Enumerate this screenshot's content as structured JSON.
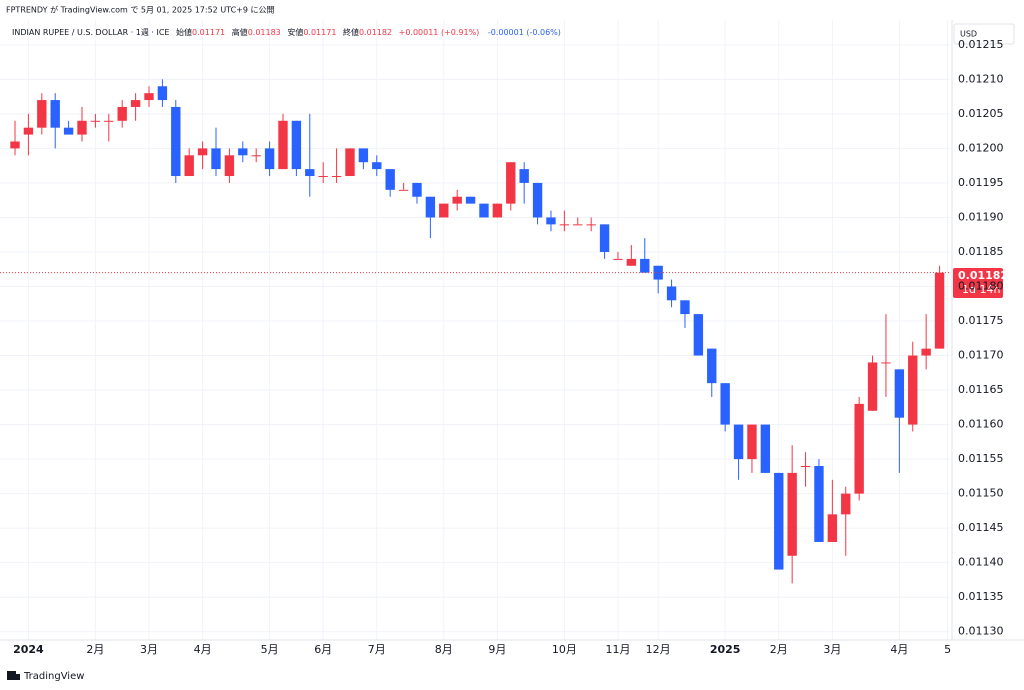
{
  "header": {
    "published": "FPTRENDY が TradingView.com で 5月 01, 2025 17:52 UTC+9 に公開"
  },
  "chart_data": {
    "type": "candlestick",
    "title": "INDIAN RUPEE / U.S. DOLLAR · 1週 · ICE",
    "legend": {
      "open_label": "始値",
      "open": "0.01171",
      "high_label": "高値",
      "high": "0.01183",
      "low_label": "安値",
      "low": "0.01171",
      "close_label": "終値",
      "close": "0.01182",
      "change": "+0.00011 (+0.91%)",
      "change2": "-0.00001 (-0.06%)"
    },
    "currency": "USD",
    "countdown": "1d 14h",
    "up_color": "#f23645",
    "down_color": "#2962ff",
    "grid": true,
    "open": [
      0.012,
      0.01202,
      0.01203,
      0.01207,
      0.01203,
      0.01202,
      0.01204,
      0.01204,
      0.01204,
      0.01206,
      0.01207,
      0.01209,
      0.01206,
      0.01196,
      0.01199,
      0.012,
      0.01196,
      0.012,
      0.01199,
      0.012,
      0.01197,
      0.01204,
      0.01197,
      0.01196,
      0.01196,
      0.01196,
      0.012,
      0.01198,
      0.01197,
      0.01194,
      0.01195,
      0.01193,
      0.0119,
      0.01192,
      0.01193,
      0.01192,
      0.0119,
      0.01192,
      0.01197,
      0.01195,
      0.0119,
      0.01189,
      0.01189,
      0.01189,
      0.01189,
      0.01184,
      0.01183,
      0.01184,
      0.01183,
      0.0118,
      0.01178,
      0.01176,
      0.01171,
      0.01166,
      0.0116,
      0.01155,
      0.0116,
      0.01153,
      0.01141,
      0.01154,
      0.01154,
      0.01143,
      0.01147,
      0.0115,
      0.01162,
      0.01169,
      0.01168,
      0.0116,
      0.0117,
      0.01171
    ],
    "high": [
      0.01204,
      0.01205,
      0.01208,
      0.01208,
      0.01204,
      0.01206,
      0.01205,
      0.01205,
      0.01207,
      0.01208,
      0.01209,
      0.0121,
      0.01207,
      0.012,
      0.01201,
      0.01203,
      0.012,
      0.01201,
      0.012,
      0.01201,
      0.01205,
      0.01204,
      0.01205,
      0.01198,
      0.012,
      0.012,
      0.012,
      0.01199,
      0.01197,
      0.01195,
      0.01195,
      0.01193,
      0.01192,
      0.01194,
      0.01193,
      0.01192,
      0.01192,
      0.01198,
      0.01198,
      0.01195,
      0.01191,
      0.01191,
      0.0119,
      0.0119,
      0.01189,
      0.01185,
      0.01186,
      0.01187,
      0.01183,
      0.01181,
      0.01178,
      0.01176,
      0.01171,
      0.01166,
      0.0116,
      0.0116,
      0.0116,
      0.01153,
      0.01157,
      0.01156,
      0.01155,
      0.01152,
      0.01151,
      0.01164,
      0.0117,
      0.01176,
      0.01168,
      0.01172,
      0.01176,
      0.01183
    ],
    "low": [
      0.01199,
      0.01199,
      0.01202,
      0.012,
      0.01202,
      0.01201,
      0.01203,
      0.01201,
      0.01203,
      0.01204,
      0.01206,
      0.01206,
      0.01195,
      0.01196,
      0.01197,
      0.01196,
      0.01195,
      0.01198,
      0.01198,
      0.01196,
      0.01197,
      0.01196,
      0.01193,
      0.01195,
      0.01195,
      0.01196,
      0.01197,
      0.01196,
      0.01193,
      0.01194,
      0.01192,
      0.01187,
      0.0119,
      0.01191,
      0.01192,
      0.0119,
      0.0119,
      0.01191,
      0.01192,
      0.01189,
      0.01188,
      0.01188,
      0.01189,
      0.01188,
      0.01184,
      0.01184,
      0.01183,
      0.01182,
      0.01179,
      0.01177,
      0.01174,
      0.0117,
      0.01164,
      0.01159,
      0.01152,
      0.01153,
      0.01153,
      0.01139,
      0.01137,
      0.01151,
      0.01143,
      0.01143,
      0.01141,
      0.01149,
      0.01162,
      0.01164,
      0.01153,
      0.01159,
      0.01168,
      0.01171
    ],
    "close": [
      0.01201,
      0.01203,
      0.01207,
      0.01203,
      0.01202,
      0.01204,
      0.01204,
      0.01204,
      0.01206,
      0.01207,
      0.01208,
      0.01207,
      0.01196,
      0.01199,
      0.012,
      0.01197,
      0.01199,
      0.01199,
      0.01199,
      0.01197,
      0.01204,
      0.01197,
      0.01196,
      0.01196,
      0.01196,
      0.012,
      0.01198,
      0.01197,
      0.01194,
      0.01194,
      0.01193,
      0.0119,
      0.01192,
      0.01193,
      0.01192,
      0.0119,
      0.01192,
      0.01198,
      0.01195,
      0.0119,
      0.01189,
      0.01189,
      0.01189,
      0.01189,
      0.01185,
      0.01184,
      0.01184,
      0.01182,
      0.01181,
      0.01178,
      0.01176,
      0.0117,
      0.01166,
      0.0116,
      0.01155,
      0.0116,
      0.01153,
      0.01139,
      0.01153,
      0.01154,
      0.01143,
      0.01147,
      0.0115,
      0.01163,
      0.01169,
      0.01169,
      0.01161,
      0.0117,
      0.01171,
      0.01182
    ],
    "ylim": [
      0.011288,
      0.012157
    ],
    "yticks": [
      {
        "value": 0.0113,
        "label": "0.01130"
      },
      0.01135,
      {
        "value": 0.0114,
        "label": "0.01140"
      },
      0.01145,
      {
        "value": 0.0115,
        "label": "0.01150"
      },
      0.01155,
      {
        "value": 0.0116,
        "label": "0.01160"
      },
      0.01165,
      {
        "value": 0.0117,
        "label": "0.01170"
      },
      0.01175,
      {
        "value": 0.0118,
        "label": "0.01180"
      },
      0.01185,
      {
        "value": 0.0119,
        "label": "0.01190"
      },
      0.01195,
      {
        "value": 0.012,
        "label": "0.01200"
      },
      0.01205,
      {
        "value": 0.0121,
        "label": "0.01210"
      },
      0.01215
    ],
    "xlim": [
      -1.12,
      69.78
    ],
    "xticks": [
      {
        "value": 1,
        "label": "2024"
      },
      {
        "value": 6,
        "label": "2月"
      },
      {
        "value": 10,
        "label": "3月"
      },
      {
        "value": 14,
        "label": "4月"
      },
      {
        "value": 19,
        "label": "5月"
      },
      {
        "value": 23,
        "label": "6月"
      },
      {
        "value": 27,
        "label": "7月"
      },
      {
        "value": 32,
        "label": "8月"
      },
      {
        "value": 36,
        "label": "9月"
      },
      {
        "value": 41,
        "label": "10月"
      },
      {
        "value": 45,
        "label": "11月"
      },
      {
        "value": 48,
        "label": "12月"
      },
      {
        "value": 53,
        "label": "2025"
      },
      {
        "value": 57,
        "label": "2月"
      },
      {
        "value": 61,
        "label": "3月"
      },
      {
        "value": 66,
        "label": "4月"
      },
      {
        "value": 69.6,
        "label": "5"
      }
    ]
  },
  "footer": {
    "brand": "TradingView"
  }
}
